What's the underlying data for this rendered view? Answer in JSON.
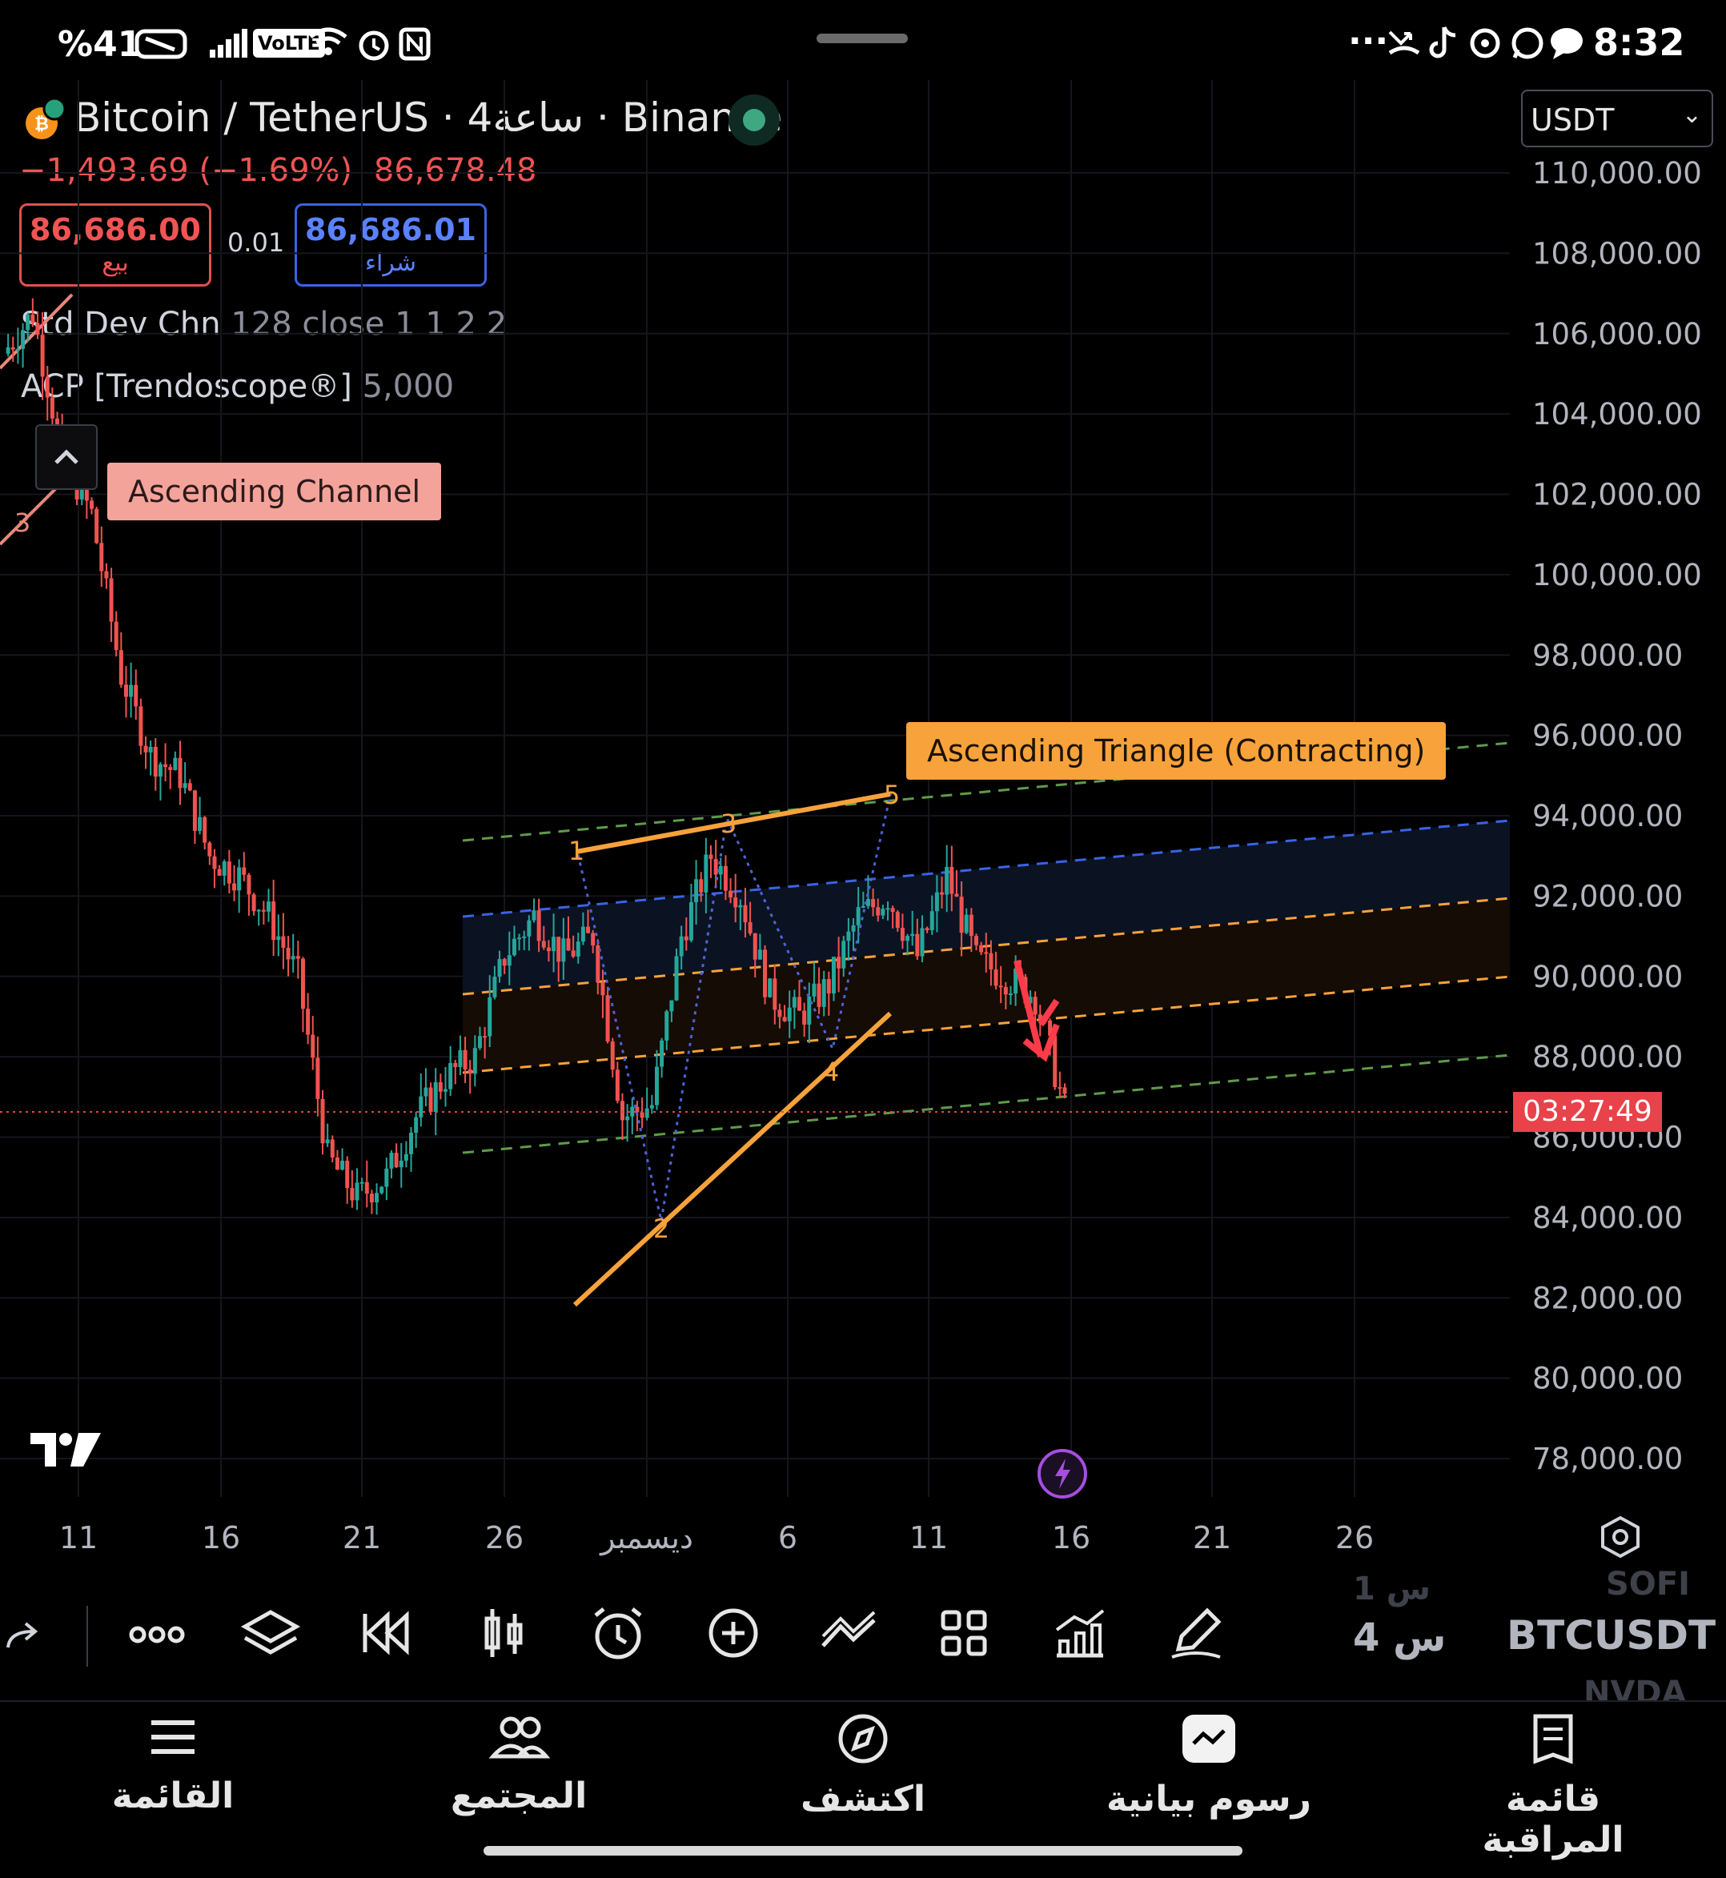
{
  "status_bar": {
    "battery": "%41",
    "network": "VoLTE",
    "time": "8:32",
    "more": "···"
  },
  "header": {
    "symbol_title": "Bitcoin / TetherUS · 4ساعة · Binance",
    "change": "−1,493.69 (−1.69%)",
    "last_price": "86,678.48",
    "sell_price": "86,686.00",
    "sell_label": "بيع",
    "spread": "0.01",
    "buy_price": "86,686.01",
    "buy_label": "شراء",
    "currency": "USDT"
  },
  "indicators": [
    {
      "name": "Std Dev Chn",
      "params": "128 close 1 1 2 2"
    },
    {
      "name": "ACP [Trendoscope®]",
      "params": "5,000"
    }
  ],
  "chart_labels": {
    "pattern_old": "Ascending Channel",
    "pattern_new": "Ascending Triangle (Contracting)",
    "countdown": "03:27:49",
    "pivots": [
      "1",
      "2",
      "3",
      "4",
      "5"
    ],
    "old_pivot": "3"
  },
  "chart_data": {
    "type": "candlestick",
    "symbol": "BTCUSDT",
    "interval": "4h",
    "ylim": [
      78000,
      110000
    ],
    "y_ticks": [
      "110,000.00",
      "108,000.00",
      "106,000.00",
      "104,000.00",
      "102,000.00",
      "100,000.00",
      "98,000.00",
      "96,000.00",
      "94,000.00",
      "92,000.00",
      "90,000.00",
      "88,000.00",
      "86,000.00",
      "84,000.00",
      "82,000.00",
      "80,000.00",
      "78,000.00"
    ],
    "x_ticks": [
      "11",
      "16",
      "21",
      "26",
      "ديسمبر",
      "6",
      "11",
      "16",
      "21",
      "26"
    ],
    "current_price": 86678.48,
    "close_path": [
      {
        "d": "Nov 10",
        "y": 105500
      },
      {
        "d": "Nov 11",
        "y": 106500
      },
      {
        "d": "Nov 12",
        "y": 103000
      },
      {
        "d": "Nov 13",
        "y": 101500
      },
      {
        "d": "Nov 14",
        "y": 97500
      },
      {
        "d": "Nov 15",
        "y": 95500
      },
      {
        "d": "Nov 16",
        "y": 95000
      },
      {
        "d": "Nov 17",
        "y": 93000
      },
      {
        "d": "Nov 18",
        "y": 92500
      },
      {
        "d": "Nov 19",
        "y": 91500
      },
      {
        "d": "Nov 20",
        "y": 90000
      },
      {
        "d": "Nov 21",
        "y": 85500
      },
      {
        "d": "Nov 22",
        "y": 84500
      },
      {
        "d": "Nov 23",
        "y": 85000
      },
      {
        "d": "Nov 24",
        "y": 86500
      },
      {
        "d": "Nov 25",
        "y": 87500
      },
      {
        "d": "Nov 26",
        "y": 88000
      },
      {
        "d": "Nov 27",
        "y": 90500
      },
      {
        "d": "Nov 28",
        "y": 91500
      },
      {
        "d": "Nov 29",
        "y": 90500
      },
      {
        "d": "Nov 30",
        "y": 91000
      },
      {
        "d": "Dec 1",
        "y": 86500
      },
      {
        "d": "Dec 2",
        "y": 86800
      },
      {
        "d": "Dec 3",
        "y": 91000
      },
      {
        "d": "Dec 4",
        "y": 93000
      },
      {
        "d": "Dec 5",
        "y": 92000
      },
      {
        "d": "Dec 6",
        "y": 89500
      },
      {
        "d": "Dec 7",
        "y": 89000
      },
      {
        "d": "Dec 8",
        "y": 89800
      },
      {
        "d": "Dec 9",
        "y": 91500
      },
      {
        "d": "Dec 10",
        "y": 92000
      },
      {
        "d": "Dec 11",
        "y": 90500
      },
      {
        "d": "Dec 12",
        "y": 92500
      },
      {
        "d": "Dec 13",
        "y": 90400
      },
      {
        "d": "Dec 14",
        "y": 90000
      },
      {
        "d": "Dec 15",
        "y": 89500
      },
      {
        "d": "Dec 15.5",
        "y": 86700
      }
    ]
  },
  "toolbar": {
    "ticker_main": "BTCUSDT",
    "ticker_prev": "SOFI",
    "ticker_next": "NVDA",
    "interval_main": "4 س",
    "interval_prev": "1 س"
  },
  "bottom_nav": [
    {
      "label": "القائمة",
      "icon": "menu-icon"
    },
    {
      "label": "المجتمع",
      "icon": "community-icon"
    },
    {
      "label": "اكتشف",
      "icon": "compass-icon"
    },
    {
      "label": "رسوم بيانية",
      "icon": "chart-icon"
    },
    {
      "label": "قائمة المراقبة",
      "icon": "watchlist-icon"
    }
  ],
  "colors": {
    "up": "#26a69a",
    "down": "#ef5350",
    "orange": "#f7a23b",
    "blue": "#3b63e6",
    "green_dash": "#5f9b4a"
  }
}
